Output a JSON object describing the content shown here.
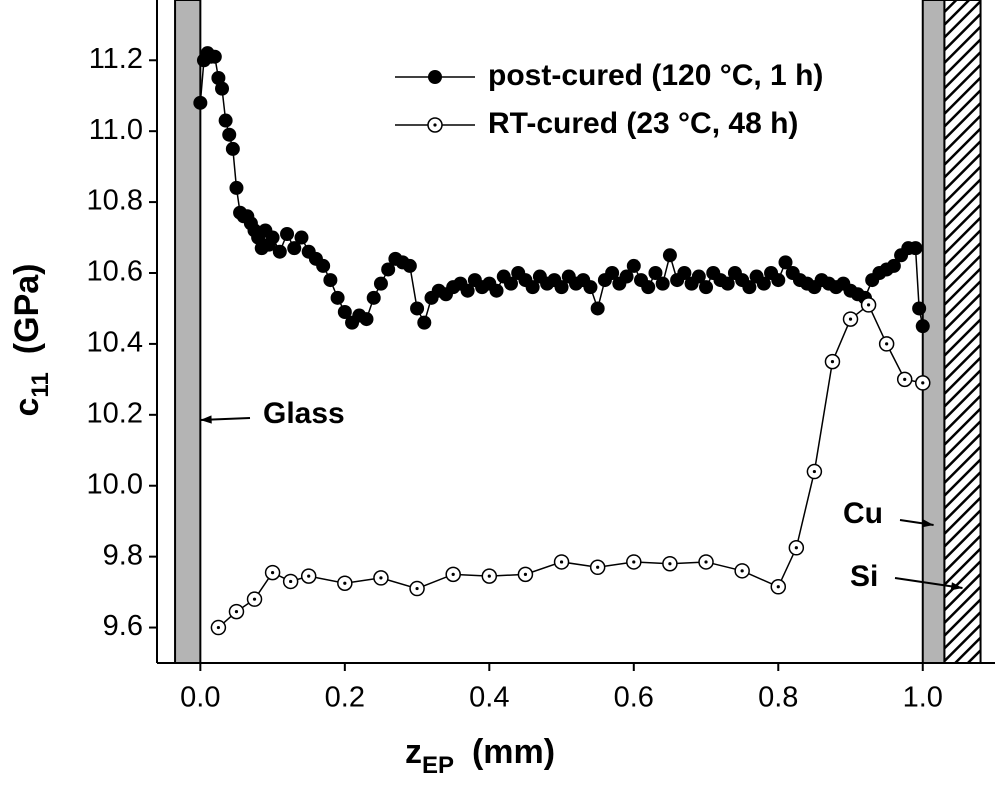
{
  "chart_data": {
    "type": "line",
    "x_label": {
      "text": "z",
      "sub": "EP",
      "unit": "(mm)"
    },
    "y_label": {
      "text": "c",
      "sub": "11",
      "unit": "(GPa)"
    },
    "xlim": [
      -0.06,
      1.1
    ],
    "ylim": [
      9.5,
      11.37
    ],
    "xticks": [
      {
        "value": 0,
        "label": "0.0"
      },
      0.2,
      0.4,
      0.6,
      0.8,
      {
        "value": 1,
        "label": "1.0"
      }
    ],
    "yticks": [
      9.6,
      9.8,
      {
        "value": 10,
        "label": "10.0"
      },
      10.2,
      10.4,
      10.6,
      10.8,
      {
        "value": 11,
        "label": "11.0"
      },
      11.2
    ],
    "legend": "upper right",
    "regions": [
      {
        "label": "Glass",
        "x": [
          -0.035,
          0
        ],
        "color": "#b4b4b4",
        "fill": "solid"
      },
      {
        "label": "Cu",
        "x": [
          1.0,
          1.03
        ],
        "color": "#b4b4b4",
        "fill": "solid"
      },
      {
        "label": "Si",
        "x": [
          1.03,
          1.08
        ],
        "color": "#000000",
        "fill": "hatch"
      }
    ],
    "series": [
      {
        "name": "post-cured (120 °C, 1 h)",
        "color": "#000000",
        "marker": "filled",
        "x": [
          0,
          0.005,
          0.01,
          0.015,
          0.02,
          0.025,
          0.03,
          0.035,
          0.04,
          0.045,
          0.05,
          0.055,
          0.06,
          0.065,
          0.07,
          0.075,
          0.08,
          0.085,
          0.09,
          0.095,
          0.1,
          0.11,
          0.12,
          0.13,
          0.14,
          0.15,
          0.16,
          0.17,
          0.18,
          0.19,
          0.2,
          0.21,
          0.22,
          0.23,
          0.24,
          0.25,
          0.26,
          0.27,
          0.28,
          0.29,
          0.3,
          0.31,
          0.32,
          0.33,
          0.34,
          0.35,
          0.36,
          0.37,
          0.38,
          0.39,
          0.4,
          0.41,
          0.42,
          0.43,
          0.44,
          0.45,
          0.46,
          0.47,
          0.48,
          0.49,
          0.5,
          0.51,
          0.52,
          0.53,
          0.54,
          0.55,
          0.56,
          0.57,
          0.58,
          0.59,
          0.6,
          0.61,
          0.62,
          0.63,
          0.64,
          0.65,
          0.66,
          0.67,
          0.68,
          0.69,
          0.7,
          0.71,
          0.72,
          0.73,
          0.74,
          0.75,
          0.76,
          0.77,
          0.78,
          0.79,
          0.8,
          0.81,
          0.82,
          0.83,
          0.84,
          0.85,
          0.86,
          0.87,
          0.88,
          0.89,
          0.9,
          0.91,
          0.92,
          0.93,
          0.94,
          0.95,
          0.96,
          0.97,
          0.98,
          0.99,
          0.995,
          1.0
        ],
        "values": [
          11.08,
          11.2,
          11.22,
          11.21,
          11.21,
          11.15,
          11.12,
          11.03,
          10.99,
          10.95,
          10.84,
          10.77,
          10.76,
          10.76,
          10.74,
          10.72,
          10.7,
          10.67,
          10.72,
          10.68,
          10.7,
          10.66,
          10.71,
          10.67,
          10.7,
          10.66,
          10.64,
          10.62,
          10.58,
          10.53,
          10.49,
          10.46,
          10.48,
          10.47,
          10.53,
          10.57,
          10.61,
          10.64,
          10.63,
          10.62,
          10.5,
          10.46,
          10.53,
          10.55,
          10.54,
          10.56,
          10.57,
          10.55,
          10.58,
          10.56,
          10.57,
          10.55,
          10.59,
          10.57,
          10.6,
          10.58,
          10.56,
          10.59,
          10.57,
          10.58,
          10.56,
          10.59,
          10.57,
          10.58,
          10.56,
          10.5,
          10.58,
          10.6,
          10.57,
          10.59,
          10.62,
          10.58,
          10.56,
          10.6,
          10.57,
          10.65,
          10.58,
          10.6,
          10.57,
          10.59,
          10.56,
          10.6,
          10.58,
          10.57,
          10.6,
          10.58,
          10.56,
          10.59,
          10.57,
          10.6,
          10.58,
          10.63,
          10.6,
          10.58,
          10.57,
          10.56,
          10.58,
          10.57,
          10.56,
          10.57,
          10.55,
          10.54,
          10.53,
          10.58,
          10.6,
          10.61,
          10.62,
          10.65,
          10.67,
          10.67,
          10.5,
          10.45
        ]
      },
      {
        "name": "RT-cured (23 °C, 48 h)",
        "color": "#000000",
        "marker": "open",
        "x": [
          0.025,
          0.05,
          0.075,
          0.1,
          0.125,
          0.15,
          0.2,
          0.25,
          0.3,
          0.35,
          0.4,
          0.45,
          0.5,
          0.55,
          0.6,
          0.65,
          0.7,
          0.75,
          0.8,
          0.825,
          0.85,
          0.875,
          0.9,
          0.925,
          0.95,
          0.975,
          1.0
        ],
        "values": [
          9.6,
          9.645,
          9.68,
          9.755,
          9.73,
          9.745,
          9.725,
          9.74,
          9.71,
          9.75,
          9.745,
          9.75,
          9.785,
          9.77,
          9.785,
          9.78,
          9.785,
          9.76,
          9.715,
          9.825,
          10.04,
          10.35,
          10.47,
          10.51,
          10.4,
          10.3,
          10.29
        ]
      }
    ]
  }
}
